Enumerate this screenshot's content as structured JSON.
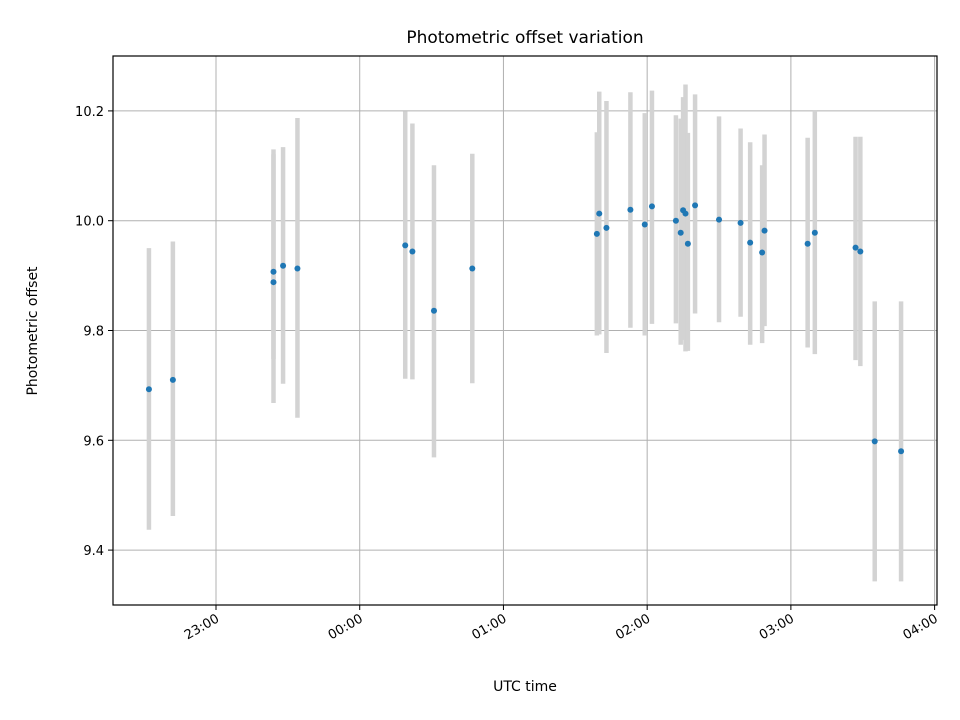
{
  "chart_data": {
    "type": "scatter",
    "title": "Photometric offset variation",
    "xlabel": "UTC time",
    "ylabel": "Photometric offset",
    "x_ticks": [
      "23:00",
      "00:00",
      "01:00",
      "02:00",
      "03:00",
      "04:00"
    ],
    "y_ticks": [
      "9.4",
      "9.6",
      "9.8",
      "10.0",
      "10.2"
    ],
    "xlim": [
      "22:17",
      "04:01"
    ],
    "ylim": [
      9.3,
      10.3
    ],
    "grid": true,
    "errorbar_color": "#d3d3d3",
    "point_color": "#1f77b4",
    "series": [
      {
        "x": [
          "22:32",
          "22:42",
          "23:24",
          "23:24",
          "23:28",
          "23:34",
          "00:19",
          "00:22",
          "00:31",
          "00:47",
          "01:39",
          "01:40",
          "01:43",
          "01:53",
          "01:59",
          "02:02",
          "02:12",
          "02:14",
          "02:15",
          "02:16",
          "02:17",
          "02:20",
          "02:30",
          "02:39",
          "02:43",
          "02:48",
          "02:49",
          "03:07",
          "03:10",
          "03:27",
          "03:29",
          "03:35",
          "03:46"
        ],
        "y": [
          9.693,
          9.71,
          9.907,
          9.888,
          9.918,
          9.913,
          9.955,
          9.944,
          9.836,
          9.913,
          9.976,
          10.013,
          9.987,
          10.02,
          9.993,
          10.026,
          10.0,
          9.978,
          10.019,
          10.013,
          9.958,
          10.028,
          10.002,
          9.996,
          9.96,
          9.942,
          9.982,
          9.958,
          9.978,
          9.951,
          9.944,
          9.598,
          9.58
        ],
        "yerr_low": [
          9.437,
          9.462,
          9.668,
          9.748,
          9.703,
          9.641,
          9.712,
          9.711,
          9.569,
          9.704,
          9.791,
          9.793,
          9.759,
          9.805,
          9.791,
          9.812,
          9.813,
          9.774,
          9.783,
          9.762,
          9.763,
          9.831,
          9.815,
          9.825,
          9.774,
          9.777,
          9.808,
          9.769,
          9.757,
          9.746,
          9.735,
          9.343,
          9.343
        ],
        "yerr_high": [
          9.95,
          9.962,
          10.121,
          10.13,
          10.134,
          10.187,
          10.199,
          10.177,
          10.101,
          10.122,
          10.161,
          10.235,
          10.218,
          10.234,
          10.196,
          10.237,
          10.192,
          10.186,
          10.225,
          10.248,
          10.16,
          10.23,
          10.19,
          10.168,
          10.143,
          10.101,
          10.157,
          10.151,
          10.2,
          10.153,
          10.153,
          9.853,
          9.853
        ]
      }
    ]
  }
}
